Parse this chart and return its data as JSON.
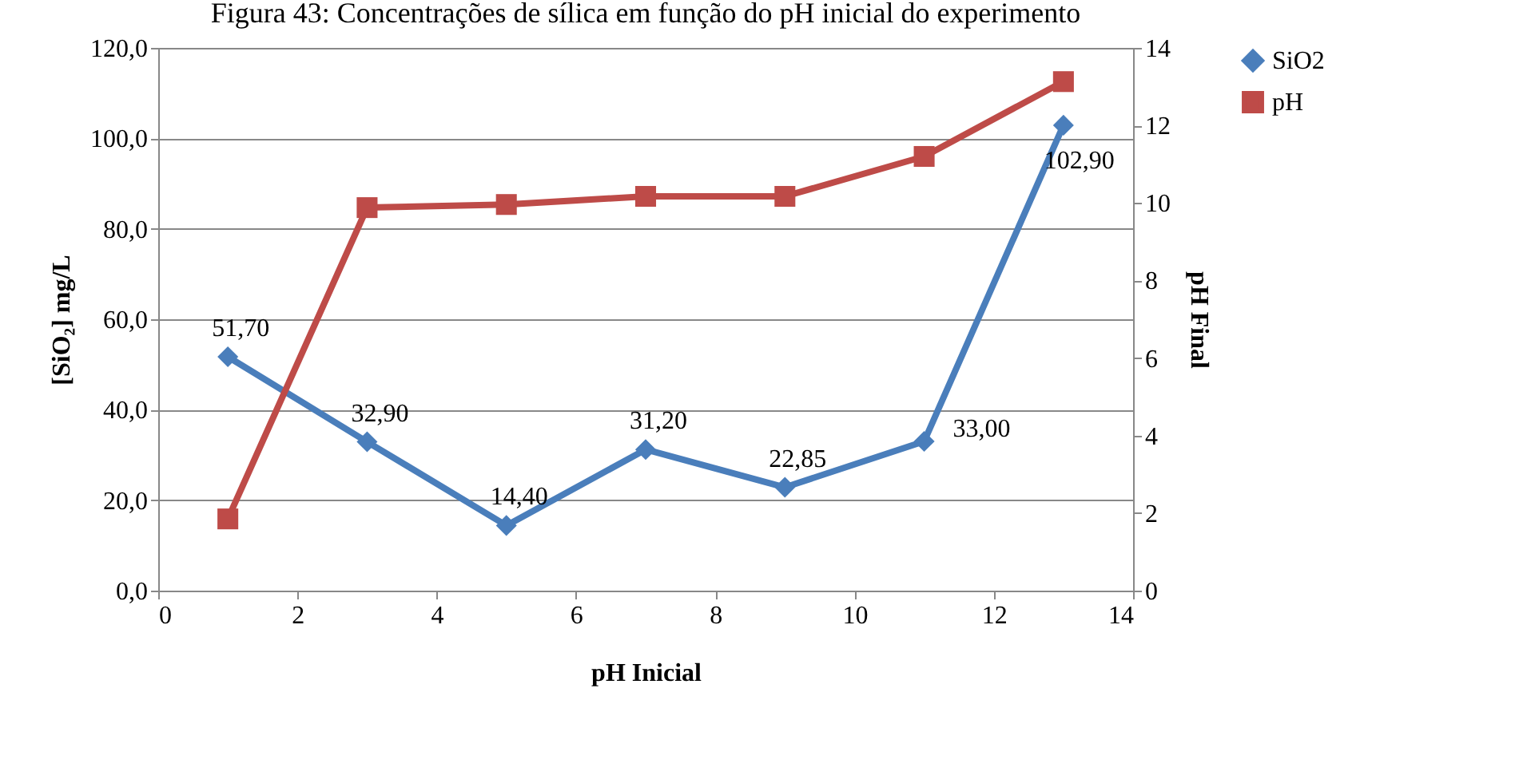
{
  "chart_data": {
    "type": "line",
    "title": "Figura 43: Concentrações de sílica em função do pH inicial do experimento",
    "xlabel": "pH Inicial",
    "ylabel": "[SiO₂] mg/L",
    "y2label": "pH Final",
    "x": [
      1,
      3,
      5,
      7,
      9,
      11,
      13
    ],
    "series": [
      {
        "name": "SiO2",
        "color": "#4a7ebb",
        "marker": "diamond",
        "values": [
          51.7,
          32.9,
          14.4,
          31.2,
          22.85,
          33.0,
          102.9
        ],
        "value_labels": [
          "51,70",
          "32,90",
          "14,40",
          "31,20",
          "22,85",
          "33,00",
          "102,90"
        ]
      },
      {
        "name": "pH",
        "color": "#be4b48",
        "marker": "square",
        "axis": "y2",
        "values": [
          1.85,
          9.88,
          9.96,
          10.17,
          10.17,
          11.2,
          13.13
        ]
      }
    ],
    "xlim": [
      0,
      14
    ],
    "xticks": [
      0,
      2,
      4,
      6,
      8,
      10,
      12,
      14
    ],
    "ylim": [
      0,
      120
    ],
    "yticks": [
      {
        "value": 0,
        "label": "0,0"
      },
      {
        "value": 20,
        "label": "20,0"
      },
      {
        "value": 40,
        "label": "40,0"
      },
      {
        "value": 60,
        "label": "60,0"
      },
      {
        "value": 80,
        "label": "80,0"
      },
      {
        "value": 100,
        "label": "100,0"
      },
      {
        "value": 120,
        "label": "120,0"
      }
    ],
    "y2lim": [
      0,
      14
    ],
    "y2ticks": [
      0,
      2,
      4,
      6,
      8,
      10,
      12,
      14
    ],
    "grid": "y",
    "legend": "right",
    "line_style": "solid"
  }
}
